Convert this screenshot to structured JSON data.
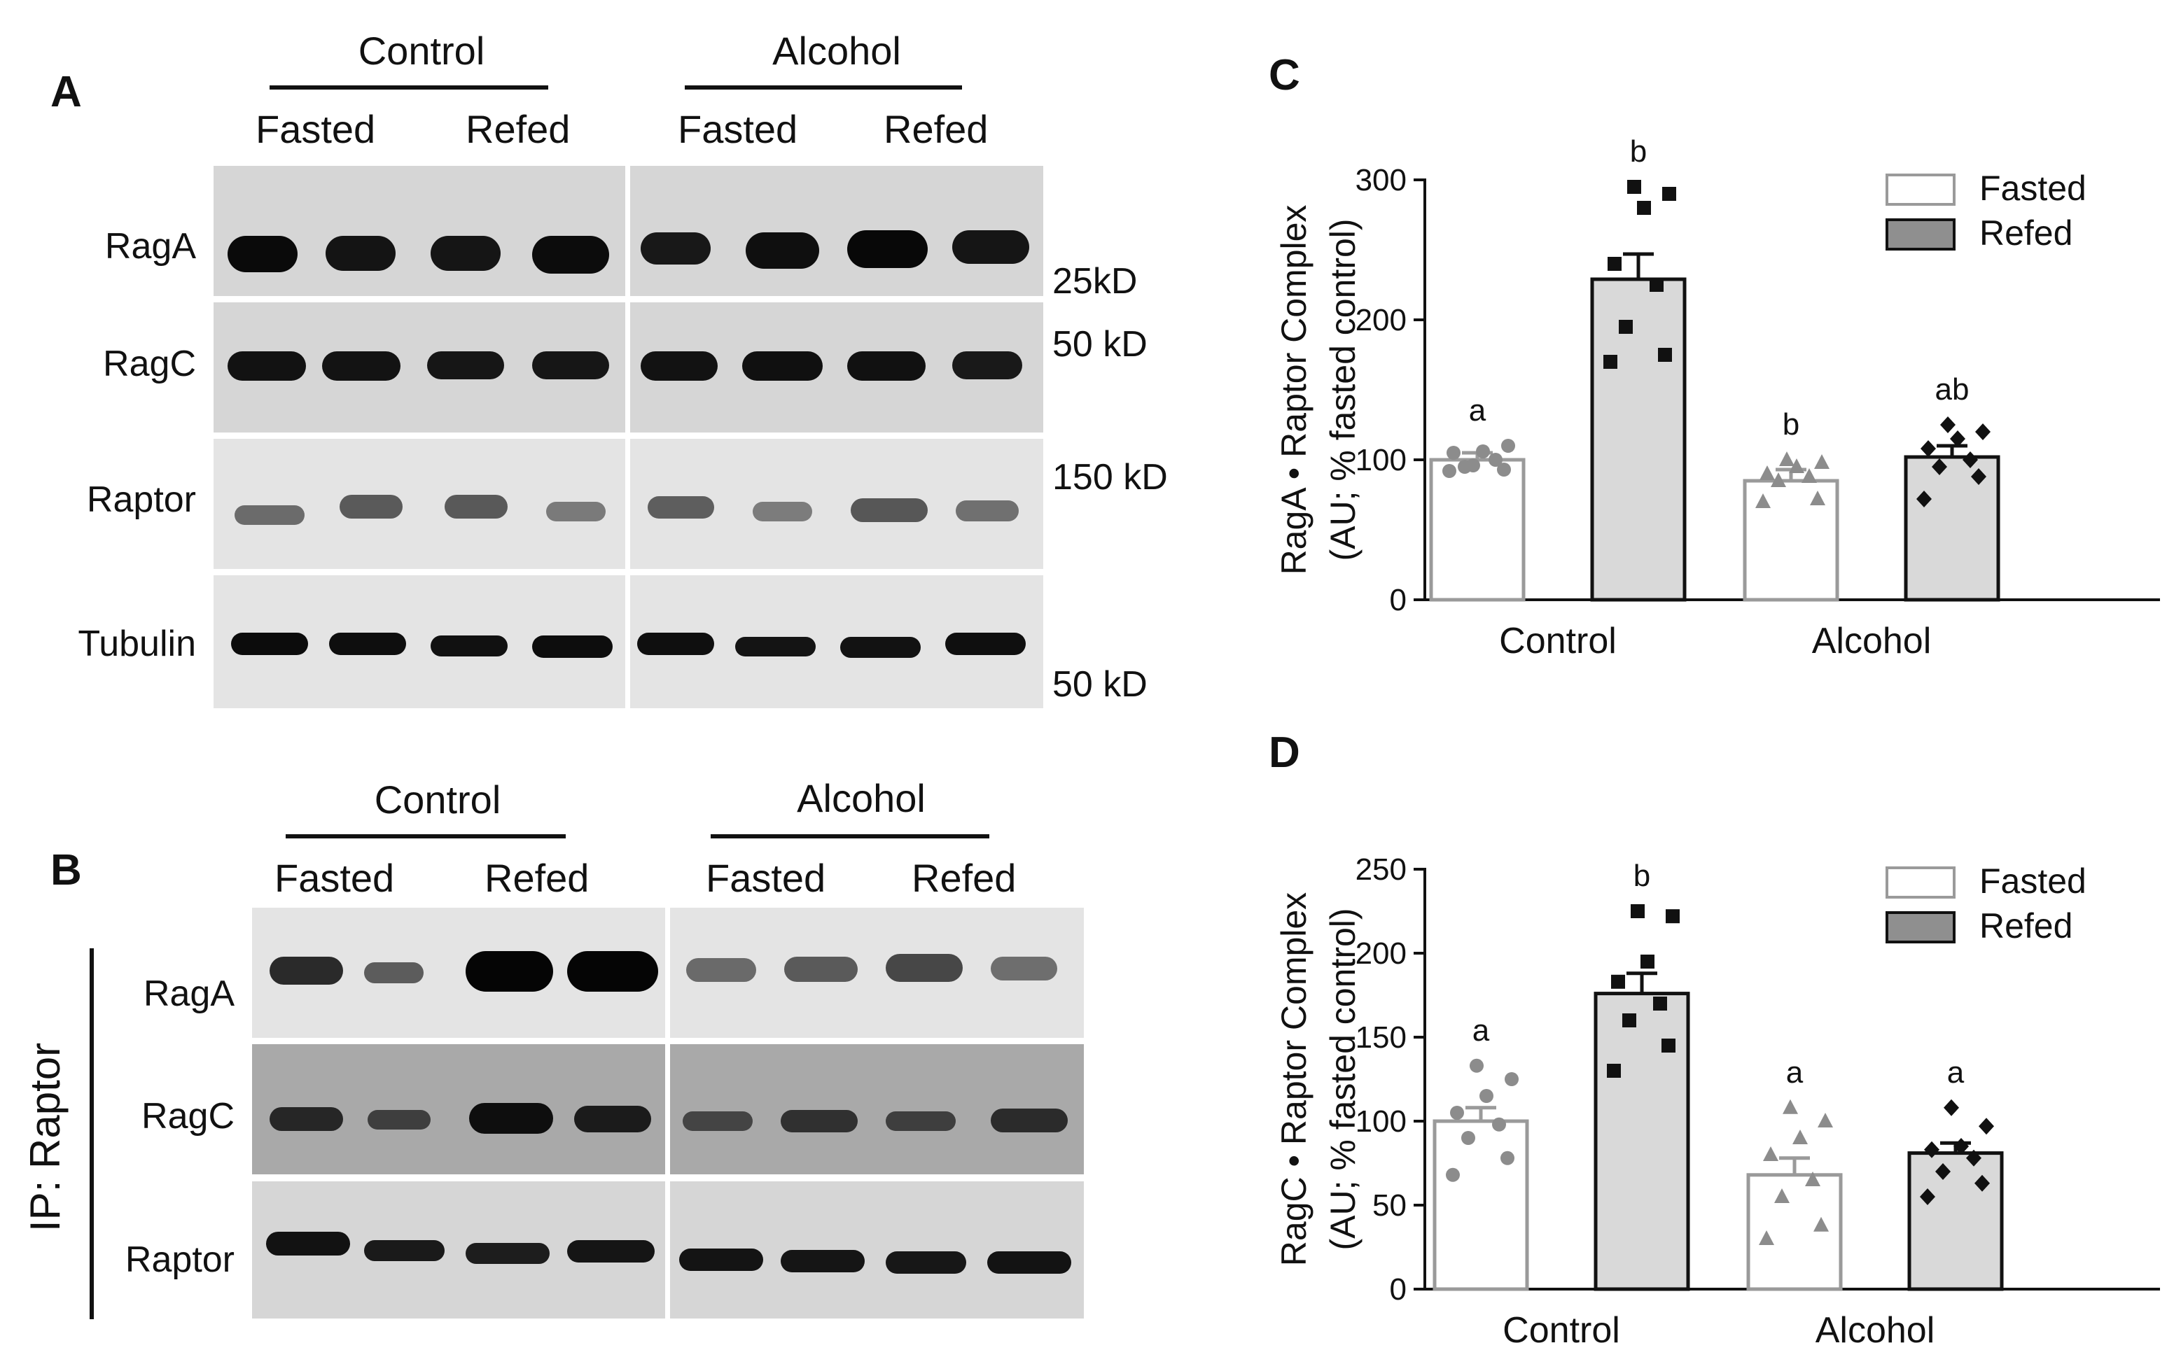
{
  "panelA": {
    "letter": "A",
    "groups": [
      "Control",
      "Alcohol"
    ],
    "conditions": [
      "Fasted",
      "Refed",
      "Fasted",
      "Refed"
    ],
    "rows": [
      {
        "label": "RagA",
        "mw": "25kD"
      },
      {
        "label": "RagC",
        "mw": "50 kD"
      },
      {
        "label": "Raptor",
        "mw": "150 kD"
      },
      {
        "label": "Tubulin",
        "mw": "50 kD"
      }
    ]
  },
  "panelB": {
    "letter": "B",
    "groups": [
      "Control",
      "Alcohol"
    ],
    "conditions": [
      "Fasted",
      "Refed",
      "Fasted",
      "Refed"
    ],
    "ip_label": "IP: Raptor",
    "rows": [
      {
        "label": "RagA"
      },
      {
        "label": "RagC"
      },
      {
        "label": "Raptor"
      }
    ]
  },
  "chart_data": [
    {
      "panel": "C",
      "type": "bar",
      "ylabel_line1": "RagA • Raptor Complex",
      "ylabel_line2": "(AU; % fasted control)",
      "categories": [
        "Control",
        "Alcohol"
      ],
      "ylim": [
        0,
        300
      ],
      "yticks": [
        0,
        100,
        200,
        300
      ],
      "legend": {
        "placement": "top-right",
        "entries": [
          "Fasted",
          "Refed"
        ]
      },
      "series": [
        {
          "name": "Fasted",
          "values": [
            100,
            85
          ],
          "sem": [
            5,
            8
          ],
          "letters": [
            "a",
            "b"
          ],
          "points": [
            [
              92,
              93,
              95,
              100,
              105,
              106,
              110,
              96
            ],
            [
              70,
              72,
              85,
              88,
              90,
              95,
              98,
              100
            ]
          ]
        },
        {
          "name": "Refed",
          "values": [
            229,
            102
          ],
          "sem": [
            18,
            8
          ],
          "letters": [
            "b",
            "ab"
          ],
          "points": [
            [
              170,
              175,
              195,
              225,
              240,
              280,
              290,
              295
            ],
            [
              72,
              88,
              95,
              100,
              108,
              115,
              120,
              125
            ]
          ]
        }
      ]
    },
    {
      "panel": "D",
      "type": "bar",
      "ylabel_line1": "RagC • Raptor Complex",
      "ylabel_line2": "(AU; % fasted control)",
      "categories": [
        "Control",
        "Alcohol"
      ],
      "ylim": [
        0,
        250
      ],
      "yticks": [
        0,
        50,
        100,
        150,
        200,
        250
      ],
      "legend": {
        "placement": "top-right",
        "entries": [
          "Fasted",
          "Refed"
        ]
      },
      "series": [
        {
          "name": "Fasted",
          "values": [
            100,
            68
          ],
          "sem": [
            8,
            10
          ],
          "letters": [
            "a",
            "a"
          ],
          "points": [
            [
              68,
              78,
              90,
              98,
              105,
              115,
              125,
              133
            ],
            [
              30,
              38,
              55,
              65,
              80,
              90,
              100,
              108
            ]
          ]
        },
        {
          "name": "Refed",
          "values": [
            176,
            81
          ],
          "sem": [
            12,
            6
          ],
          "letters": [
            "b",
            "a"
          ],
          "points": [
            [
              130,
              145,
              160,
              170,
              183,
              195,
              222,
              225
            ],
            [
              55,
              63,
              70,
              78,
              83,
              85,
              97,
              108
            ]
          ]
        }
      ]
    }
  ]
}
